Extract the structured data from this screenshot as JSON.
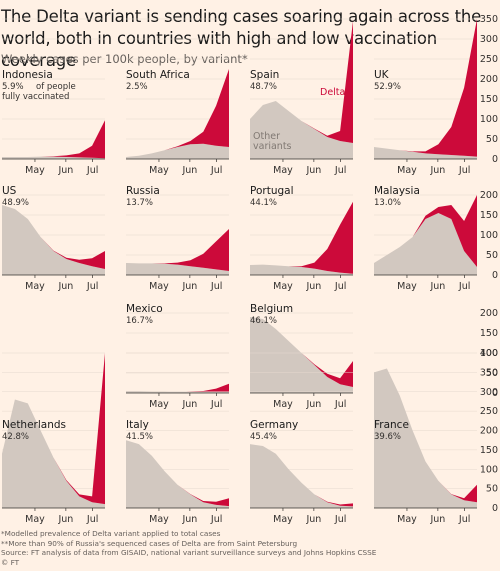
{
  "title": "The Delta variant is sending cases soaring again across the world, both in countries with high and low vaccination coverage",
  "subtitle": "Weekly cases per 100k people, by variant*",
  "labels": {
    "delta": "Delta",
    "other": "Other variants",
    "vax_note": "of people fully vaccinated"
  },
  "footer": [
    "*Modelled prevalence of Delta variant applied to total cases",
    "**More than 90% of Russia's sequenced cases of Delta are from Saint Petersburg",
    "Source: FT analysis of data from GISAID, national variant surveillance surveys and Johns Hopkins CSSE",
    "© FT"
  ],
  "colors": {
    "background": "#fff1e5",
    "delta": "#cc0a3a",
    "other": "#d2c8c0",
    "text": "#33302e",
    "grid": "#e6d9ce"
  },
  "chart_data": {
    "type": "area",
    "stacked": true,
    "x_ticks": [
      "May",
      "Jun",
      "Jul"
    ],
    "series_names": [
      "Other variants",
      "Delta"
    ],
    "panels": [
      {
        "country": "Indonesia",
        "vaccinated": "5.9%",
        "other": [
          5,
          5,
          5,
          6,
          6,
          5,
          4,
          3,
          2
        ],
        "delta": [
          0,
          0,
          0,
          0,
          1,
          4,
          10,
          30,
          95
        ]
      },
      {
        "country": "South Africa",
        "vaccinated": "2.5%",
        "other": [
          5,
          8,
          14,
          22,
          30,
          37,
          38,
          33,
          30
        ],
        "delta": [
          0,
          0,
          0,
          0,
          2,
          8,
          30,
          100,
          195
        ]
      },
      {
        "country": "Spain",
        "vaccinated": "48.7%",
        "other": [
          100,
          135,
          145,
          120,
          95,
          75,
          55,
          45,
          40
        ],
        "delta": [
          0,
          0,
          0,
          0,
          0,
          1,
          3,
          25,
          305
        ]
      },
      {
        "country": "UK",
        "vaccinated": "52.9%",
        "other": [
          30,
          26,
          22,
          18,
          14,
          12,
          10,
          8,
          6
        ],
        "delta": [
          0,
          0,
          0,
          1,
          5,
          25,
          70,
          170,
          345
        ]
      },
      {
        "country": "US",
        "vaccinated": "48.9%",
        "other": [
          175,
          165,
          140,
          95,
          60,
          40,
          30,
          22,
          15
        ],
        "delta": [
          0,
          0,
          0,
          0,
          1,
          3,
          8,
          20,
          45
        ]
      },
      {
        "country": "Russia",
        "vaccinated": "13.7%",
        "other": [
          30,
          29,
          29,
          28,
          26,
          22,
          18,
          14,
          10
        ],
        "delta": [
          0,
          0,
          0,
          1,
          5,
          15,
          35,
          70,
          105
        ]
      },
      {
        "country": "Portugal",
        "vaccinated": "44.1%",
        "other": [
          25,
          26,
          24,
          22,
          20,
          16,
          10,
          6,
          3
        ],
        "delta": [
          0,
          0,
          0,
          0,
          2,
          15,
          55,
          120,
          180
        ]
      },
      {
        "country": "Malaysia",
        "vaccinated": "13.0%",
        "other": [
          30,
          50,
          70,
          95,
          140,
          155,
          140,
          60,
          20
        ],
        "delta": [
          0,
          0,
          0,
          0,
          8,
          15,
          35,
          75,
          190
        ]
      },
      {
        "country": "Mexico",
        "vaccinated": "16.7%",
        "other": [
          5,
          5,
          4,
          4,
          3,
          3,
          3,
          3,
          3
        ],
        "delta": [
          0,
          0,
          0,
          0,
          0,
          1,
          2,
          8,
          20
        ]
      },
      {
        "country": "Belgium",
        "vaccinated": "46.1%",
        "other": [
          190,
          185,
          160,
          130,
          100,
          70,
          40,
          22,
          15
        ],
        "delta": [
          0,
          0,
          0,
          0,
          0,
          2,
          8,
          15,
          65
        ]
      },
      {
        "country": "Netherlands",
        "vaccinated": "42.8%",
        "other": [
          140,
          280,
          270,
          200,
          130,
          70,
          30,
          15,
          10
        ],
        "delta": [
          0,
          0,
          0,
          0,
          0,
          2,
          5,
          15,
          390
        ]
      },
      {
        "country": "Italy",
        "vaccinated": "41.5%",
        "other": [
          175,
          165,
          135,
          95,
          60,
          35,
          15,
          8,
          5
        ],
        "delta": [
          0,
          0,
          0,
          0,
          0,
          1,
          3,
          8,
          20
        ]
      },
      {
        "country": "Germany",
        "vaccinated": "45.4%",
        "other": [
          165,
          160,
          140,
          100,
          65,
          35,
          15,
          6,
          4
        ],
        "delta": [
          0,
          0,
          0,
          0,
          0,
          0,
          1,
          3,
          8
        ]
      },
      {
        "country": "France",
        "vaccinated": "39.6%",
        "other": [
          350,
          360,
          290,
          200,
          120,
          70,
          35,
          20,
          15
        ],
        "delta": [
          0,
          0,
          0,
          0,
          0,
          0,
          1,
          5,
          45
        ]
      }
    ],
    "axes": [
      {
        "ticks": [
          0,
          50,
          100,
          150,
          200,
          250,
          300,
          350
        ],
        "max": 350
      },
      {
        "ticks": [
          0,
          50,
          100,
          150,
          200
        ],
        "max": 200
      },
      {
        "ticks": [
          0,
          50,
          100,
          150,
          200
        ],
        "max": 200
      },
      {
        "ticks": [
          0,
          50,
          100,
          150,
          200,
          250,
          300,
          350,
          400
        ],
        "max": 400
      }
    ]
  }
}
